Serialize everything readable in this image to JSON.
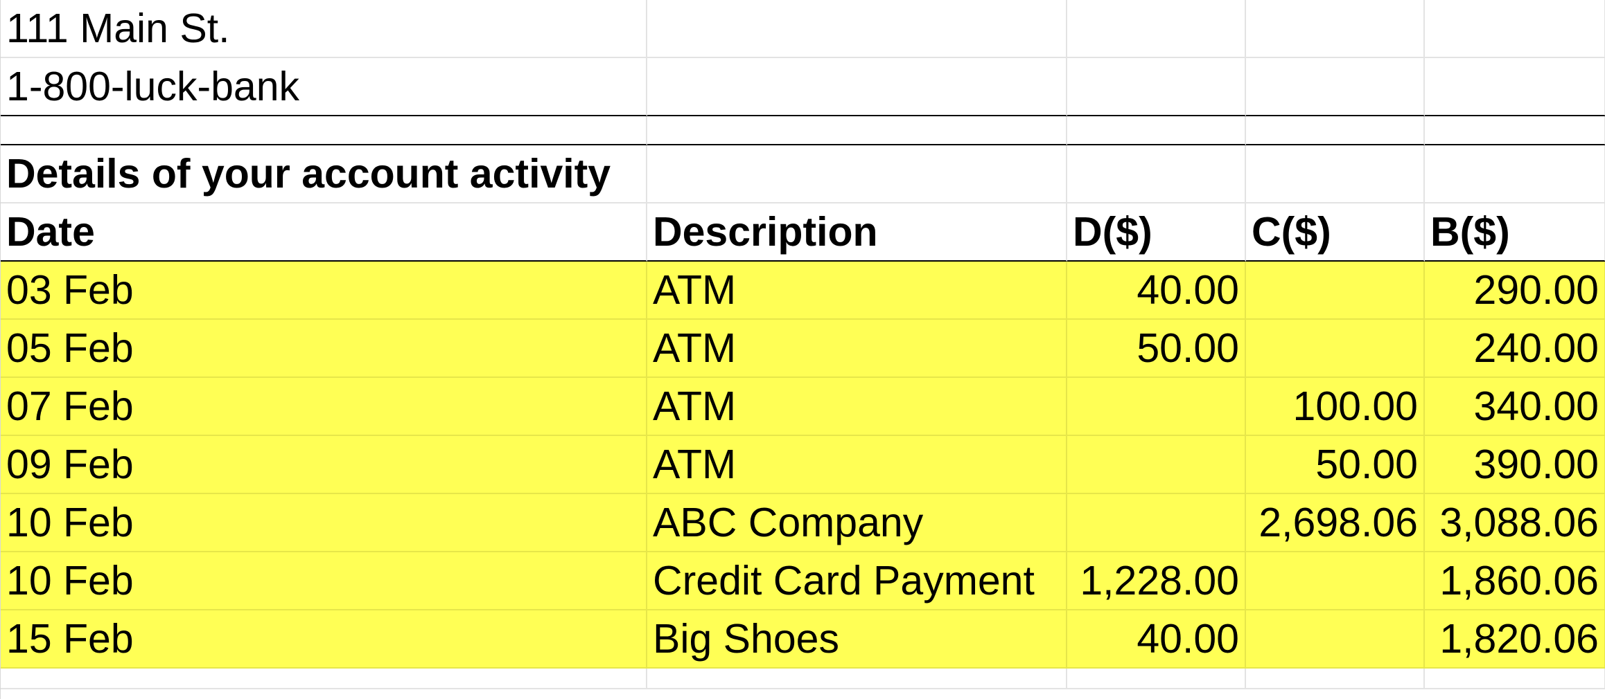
{
  "address": {
    "street": "111 Main St.",
    "phone": "1-800-luck-bank"
  },
  "section_title": "Details of your account activity",
  "columns": {
    "date": "Date",
    "description": "Description",
    "debit": "D($)",
    "credit": "C($)",
    "balance": "B($)"
  },
  "rows": [
    {
      "date": "03 Feb",
      "description": "ATM",
      "debit": "40.00",
      "credit": "",
      "balance": "290.00"
    },
    {
      "date": "05 Feb",
      "description": "ATM",
      "debit": "50.00",
      "credit": "",
      "balance": "240.00"
    },
    {
      "date": "07 Feb",
      "description": "ATM",
      "debit": "",
      "credit": "100.00",
      "balance": "340.00"
    },
    {
      "date": "09 Feb",
      "description": "ATM",
      "debit": "",
      "credit": "50.00",
      "balance": "390.00"
    },
    {
      "date": "10 Feb",
      "description": "ABC Company",
      "debit": "",
      "credit": "2,698.06",
      "balance": "3,088.06"
    },
    {
      "date": "10 Feb",
      "description": "Credit Card Payment",
      "debit": "1,228.00",
      "credit": "",
      "balance": "1,860.06"
    },
    {
      "date": "15 Feb",
      "description": "Big Shoes",
      "debit": "40.00",
      "credit": "",
      "balance": "1,820.06"
    }
  ],
  "colors": {
    "highlight": "#ffff55",
    "gridline": "#e3e3e3",
    "rule": "#000000"
  }
}
